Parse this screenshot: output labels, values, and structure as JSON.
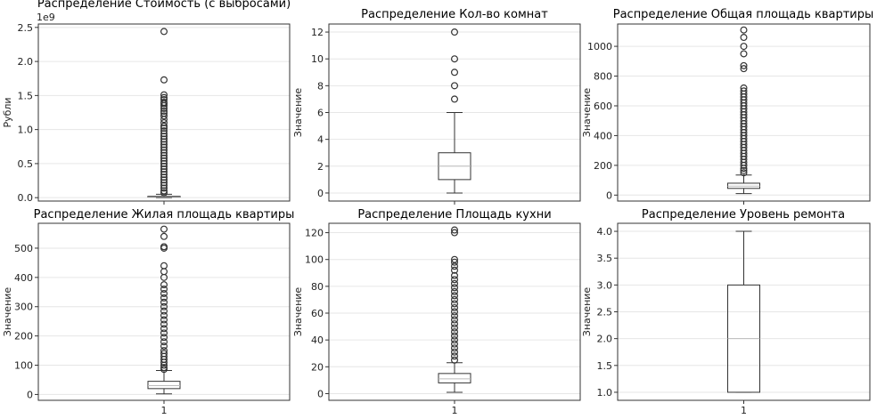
{
  "chart_data": [
    {
      "type": "box",
      "title": "Распределение Стоимость (с выбросами)",
      "ylabel": "Рубли",
      "y_exponent_label": "1e9",
      "ylim": [
        -0.05,
        2.55
      ],
      "yticks": [
        0.0,
        0.5,
        1.0,
        1.5,
        2.0,
        2.5
      ],
      "ytick_labels": [
        "0.0",
        "0.5",
        "1.0",
        "1.5",
        "2.0",
        "2.5"
      ],
      "xtick_labels": [],
      "grid": true,
      "box": {
        "whisker_low": 0.0,
        "q1": 0.008,
        "median": 0.013,
        "q3": 0.022,
        "whisker_high": 0.05
      },
      "outliers": [
        2.44,
        1.73,
        1.51,
        1.47,
        1.44,
        1.4,
        1.38,
        1.35,
        1.31,
        1.27,
        1.24,
        1.2,
        1.15,
        1.1,
        1.05,
        1.02,
        0.98,
        0.94,
        0.9,
        0.86,
        0.82,
        0.78,
        0.74,
        0.7,
        0.66,
        0.62,
        0.58,
        0.54,
        0.5,
        0.46,
        0.42,
        0.38,
        0.34,
        0.3,
        0.26,
        0.22,
        0.18,
        0.14,
        0.1,
        0.07
      ]
    },
    {
      "type": "box",
      "title": "Распределение Кол-во комнат",
      "ylabel": "Значение",
      "ylim": [
        -0.6,
        12.6
      ],
      "yticks": [
        0,
        2,
        4,
        6,
        8,
        10,
        12
      ],
      "ytick_labels": [
        "0",
        "2",
        "4",
        "6",
        "8",
        "10",
        "12"
      ],
      "xtick_labels": [],
      "grid": true,
      "box": {
        "whisker_low": 0,
        "q1": 1,
        "median": 2,
        "q3": 3,
        "whisker_high": 6
      },
      "outliers": [
        7,
        8,
        9,
        10,
        12
      ]
    },
    {
      "type": "box",
      "title": "Распределение Общая площадь квартиры",
      "ylabel": "Значение",
      "ylim": [
        -40,
        1150
      ],
      "yticks": [
        0,
        200,
        400,
        600,
        800,
        1000
      ],
      "ytick_labels": [
        "0",
        "200",
        "400",
        "600",
        "800",
        "1000"
      ],
      "xtick_labels": [],
      "grid": true,
      "box": {
        "whisker_low": 10,
        "q1": 45,
        "median": 60,
        "q3": 80,
        "whisker_high": 135
      },
      "outliers": [
        1110,
        1060,
        1000,
        950,
        870,
        850,
        720,
        700,
        680,
        660,
        640,
        620,
        600,
        580,
        560,
        540,
        520,
        500,
        480,
        460,
        440,
        420,
        400,
        380,
        360,
        340,
        320,
        300,
        280,
        260,
        240,
        220,
        200,
        180,
        165,
        150
      ]
    },
    {
      "type": "box",
      "title": "Распределение Жилая площадь квартиры",
      "ylabel": "Значение",
      "ylim": [
        -20,
        585
      ],
      "yticks": [
        0,
        100,
        200,
        300,
        400,
        500
      ],
      "ytick_labels": [
        "0",
        "100",
        "200",
        "300",
        "400",
        "500"
      ],
      "xtick_labels": [
        "1"
      ],
      "grid": true,
      "box": {
        "whisker_low": 2,
        "q1": 20,
        "median": 30,
        "q3": 45,
        "whisker_high": 82
      },
      "outliers": [
        565,
        540,
        505,
        500,
        440,
        420,
        400,
        375,
        360,
        345,
        330,
        315,
        300,
        285,
        270,
        255,
        240,
        225,
        210,
        195,
        180,
        165,
        150,
        140,
        130,
        120,
        110,
        100,
        92,
        86
      ]
    },
    {
      "type": "box",
      "title": "Распределение Площадь кухни",
      "ylabel": "Значение",
      "ylim": [
        -5,
        127
      ],
      "yticks": [
        0,
        20,
        40,
        60,
        80,
        100,
        120
      ],
      "ytick_labels": [
        "0",
        "20",
        "40",
        "60",
        "80",
        "100",
        "120"
      ],
      "xtick_labels": [
        "1"
      ],
      "grid": true,
      "box": {
        "whisker_low": 1,
        "q1": 8,
        "median": 11,
        "q3": 15,
        "whisker_high": 23
      },
      "outliers": [
        122,
        120,
        100,
        98,
        95,
        92,
        88,
        85,
        82,
        79,
        76,
        73,
        70,
        67,
        64,
        61,
        58,
        55,
        52,
        49,
        46,
        43,
        40,
        37,
        34,
        31,
        28,
        25
      ]
    },
    {
      "type": "box",
      "title": "Распределение Уровень ремонта",
      "ylabel": "Значение",
      "ylim": [
        0.85,
        4.15
      ],
      "yticks": [
        1.0,
        1.5,
        2.0,
        2.5,
        3.0,
        3.5,
        4.0
      ],
      "ytick_labels": [
        "1.0",
        "1.5",
        "2.0",
        "2.5",
        "3.0",
        "3.5",
        "4.0"
      ],
      "xtick_labels": [
        "1"
      ],
      "grid": true,
      "box": {
        "whisker_low": 1.0,
        "q1": 1.0,
        "median": 2.0,
        "q3": 3.0,
        "whisker_high": 4.0
      },
      "outliers": []
    }
  ]
}
